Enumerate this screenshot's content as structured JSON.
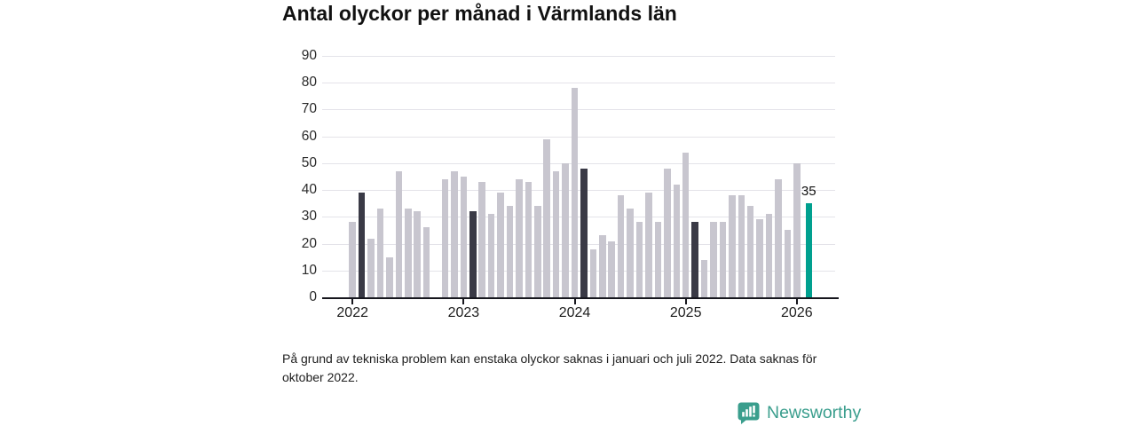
{
  "title": "Antal olyckor per månad i Värmlands län",
  "footnote": "På grund av tekniska problem kan enstaka olyckor saknas i januari och juli 2022. Data saknas för oktober 2022.",
  "logo": {
    "text": "Newsworthy"
  },
  "colors": {
    "bar_normal": "#c8c6cf",
    "bar_highlight": "#3a3a46",
    "bar_accent": "#00a08f",
    "grid": "#e4e3e9",
    "axis": "#16161d",
    "logo": "#3a9e8d"
  },
  "chart_data": {
    "type": "bar",
    "title": "Antal olyckor per månad i Värmlands län",
    "xlabel": "",
    "ylabel": "",
    "ylim": [
      0,
      90
    ],
    "y_ticks": [
      0,
      10,
      20,
      30,
      40,
      50,
      60,
      70,
      80,
      90
    ],
    "x_tick_labels": [
      "2022",
      "2023",
      "2024",
      "2025",
      "2026"
    ],
    "x_tick_month_indices": [
      0,
      12,
      24,
      36,
      48
    ],
    "grid": true,
    "legend": false,
    "annotation": {
      "month": "2026-02",
      "text": "35"
    },
    "months": [
      {
        "month": "2022-01",
        "value": 28,
        "style": "normal"
      },
      {
        "month": "2022-02",
        "value": 39,
        "style": "highlight"
      },
      {
        "month": "2022-03",
        "value": 22,
        "style": "normal"
      },
      {
        "month": "2022-04",
        "value": 33,
        "style": "normal"
      },
      {
        "month": "2022-05",
        "value": 15,
        "style": "normal"
      },
      {
        "month": "2022-06",
        "value": 47,
        "style": "normal"
      },
      {
        "month": "2022-07",
        "value": 33,
        "style": "normal"
      },
      {
        "month": "2022-08",
        "value": 32,
        "style": "normal"
      },
      {
        "month": "2022-09",
        "value": 26,
        "style": "normal"
      },
      {
        "month": "2022-10",
        "value": null,
        "style": "normal"
      },
      {
        "month": "2022-11",
        "value": 44,
        "style": "normal"
      },
      {
        "month": "2022-12",
        "value": 47,
        "style": "normal"
      },
      {
        "month": "2023-01",
        "value": 45,
        "style": "normal"
      },
      {
        "month": "2023-02",
        "value": 32,
        "style": "highlight"
      },
      {
        "month": "2023-03",
        "value": 43,
        "style": "normal"
      },
      {
        "month": "2023-04",
        "value": 31,
        "style": "normal"
      },
      {
        "month": "2023-05",
        "value": 39,
        "style": "normal"
      },
      {
        "month": "2023-06",
        "value": 34,
        "style": "normal"
      },
      {
        "month": "2023-07",
        "value": 44,
        "style": "normal"
      },
      {
        "month": "2023-08",
        "value": 43,
        "style": "normal"
      },
      {
        "month": "2023-09",
        "value": 34,
        "style": "normal"
      },
      {
        "month": "2023-10",
        "value": 59,
        "style": "normal"
      },
      {
        "month": "2023-11",
        "value": 47,
        "style": "normal"
      },
      {
        "month": "2023-12",
        "value": 50,
        "style": "normal"
      },
      {
        "month": "2024-01",
        "value": 78,
        "style": "normal"
      },
      {
        "month": "2024-02",
        "value": 48,
        "style": "highlight"
      },
      {
        "month": "2024-03",
        "value": 18,
        "style": "normal"
      },
      {
        "month": "2024-04",
        "value": 23,
        "style": "normal"
      },
      {
        "month": "2024-05",
        "value": 21,
        "style": "normal"
      },
      {
        "month": "2024-06",
        "value": 38,
        "style": "normal"
      },
      {
        "month": "2024-07",
        "value": 33,
        "style": "normal"
      },
      {
        "month": "2024-08",
        "value": 28,
        "style": "normal"
      },
      {
        "month": "2024-09",
        "value": 39,
        "style": "normal"
      },
      {
        "month": "2024-10",
        "value": 28,
        "style": "normal"
      },
      {
        "month": "2024-11",
        "value": 48,
        "style": "normal"
      },
      {
        "month": "2024-12",
        "value": 42,
        "style": "normal"
      },
      {
        "month": "2025-01",
        "value": 54,
        "style": "normal"
      },
      {
        "month": "2025-02",
        "value": 28,
        "style": "highlight"
      },
      {
        "month": "2025-03",
        "value": 14,
        "style": "normal"
      },
      {
        "month": "2025-04",
        "value": 28,
        "style": "normal"
      },
      {
        "month": "2025-05",
        "value": 28,
        "style": "normal"
      },
      {
        "month": "2025-06",
        "value": 38,
        "style": "normal"
      },
      {
        "month": "2025-07",
        "value": 38,
        "style": "normal"
      },
      {
        "month": "2025-08",
        "value": 34,
        "style": "normal"
      },
      {
        "month": "2025-09",
        "value": 29,
        "style": "normal"
      },
      {
        "month": "2025-10",
        "value": 31,
        "style": "normal"
      },
      {
        "month": "2025-11",
        "value": 44,
        "style": "normal"
      },
      {
        "month": "2025-12",
        "value": 25,
        "style": "normal"
      },
      {
        "month": "2026-01",
        "value": 50,
        "style": "normal"
      },
      {
        "month": "2026-02",
        "value": 35,
        "style": "accent"
      }
    ]
  }
}
